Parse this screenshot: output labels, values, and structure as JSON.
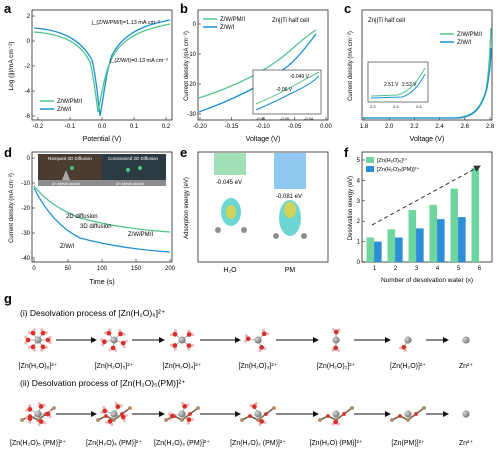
{
  "colors": {
    "series_a": "#4fc48a",
    "series_b": "#1a8fd8",
    "water_bar": "#6fd59e",
    "pm_bar": "#2b8ed6",
    "zn_atom": "#8e8e8e",
    "o_atom": "#d9302a",
    "h_atom": "#f2b6b6",
    "c_atom": "#a98a6a"
  },
  "panels": {
    "a": {
      "letter": "a",
      "ylabel": "Log (|j|/mA cm⁻²)",
      "xlabel": "Potential (V)",
      "xticks": [
        "-0.2",
        "-0.1",
        "0.0",
        "0.1",
        "0.2"
      ],
      "yticks": [
        "-6",
        "-4",
        "-2",
        "0",
        "2"
      ],
      "annot_top": "j_{Z/W/PM/I}=1.13 mA cm⁻²",
      "annot_bottom": "j_{Z/W/I}=0.13 mA cm⁻²",
      "legend": [
        "Z/W/PM/I",
        "Z/W/I"
      ]
    },
    "b": {
      "letter": "b",
      "title": "Zn||Ti half cell",
      "ylabel": "Current density (mA cm⁻²)",
      "xlabel": "Voltage (V)",
      "xticks": [
        "-0.20",
        "-0.15",
        "-0.10",
        "-0.05",
        "0.00"
      ],
      "yticks": [
        "-30",
        "-20",
        "-10",
        "0"
      ],
      "legend": [
        "Z/W/PM/I",
        "Z/W/I"
      ],
      "inset_labels": [
        "-0.049 V",
        "-0.06 V"
      ],
      "inset_xticks": [
        "-0.08",
        "-0.05",
        "-0.04"
      ]
    },
    "c": {
      "letter": "c",
      "title": "Zn||Ti half cell",
      "ylabel": "Current density (mA cm⁻²)",
      "xlabel": "Voltage (V)",
      "xticks": [
        "1.8",
        "2.0",
        "2.2",
        "2.4",
        "2.6",
        "2.8"
      ],
      "legend": [
        "Z/W/PM/I",
        "Z/W/I"
      ],
      "inset_labels": [
        "2.51 V",
        "2.53 V"
      ],
      "inset_xticks": [
        "2.2",
        "2.4",
        "2.6"
      ]
    },
    "d": {
      "letter": "d",
      "ylabel": "Current density (mA cm⁻²)",
      "xlabel": "Time (s)",
      "xticks": [
        "0",
        "50",
        "100",
        "150",
        "200"
      ],
      "yticks": [
        "-40",
        "-30",
        "-20",
        "-10",
        "0"
      ],
      "inset_left": "Rampant 2D Diffusion",
      "inset_right": "Constrained 2D Diffusion",
      "inset_base_left": "Zn Metal anode",
      "inset_base_right": "Zn Metal anode",
      "label_2d": "2D diffusion",
      "label_3d": "3D diffusion",
      "series_labels": [
        "Z/W/PM/I",
        "Z/W/I"
      ]
    },
    "e": {
      "letter": "e",
      "ylabel": "Adsorption energy (eV)",
      "energies": [
        "-0.045 eV",
        "-0.081 eV"
      ],
      "xcats": [
        "H₂O",
        "PM"
      ]
    },
    "f": {
      "letter": "f",
      "ylabel": "Desolvation energy (eV)",
      "xlabel": "Number of desolvation water (x)",
      "yticks": [
        "0",
        "1",
        "2",
        "3",
        "4",
        "5"
      ],
      "legend": [
        "[Zn(H₂O)₆]²⁺",
        "[Zn(H₂O)₅(PM)]²⁺"
      ]
    }
  },
  "chart_data": {
    "type": "bar",
    "categories": [
      "1",
      "2",
      "3",
      "4",
      "5",
      "6"
    ],
    "series": [
      {
        "name": "[Zn(H₂O)₆]²⁺",
        "values": [
          1.2,
          1.6,
          2.55,
          2.8,
          3.6,
          4.6
        ]
      },
      {
        "name": "[Zn(H₂O)₅(PM)]²⁺",
        "values": [
          1.0,
          1.2,
          1.65,
          2.1,
          2.2,
          0
        ]
      }
    ],
    "xlabel": "Number of desolvation water (x)",
    "ylabel": "Desolvation energy (eV)",
    "ylim": [
      0,
      5
    ]
  },
  "section_g": {
    "letter": "g",
    "row1_title": "(i) Desolvation process of [Zn(H₂O)₆]²⁺",
    "row1_labels": [
      "[Zn(H₂O)₆]²⁺",
      "[Zn(H₂O)₅]²⁺",
      "[Zn(H₂O)₄]²⁺",
      "[Zn(H₂O)₃]²⁺",
      "[Zn(H₂O)₂]²⁺",
      "[Zn(H₂O)]²⁺",
      "Zn²⁺"
    ],
    "row2_title": "(ii) Desolvation process of [Zn(H₂O)₅(PM)]²⁺",
    "row2_labels": [
      "[Zn(H₂O)₅ (PM)]²⁺",
      "[Zn(H₂O)₄ (PM)]²⁺",
      "[Zn(H₂O)₃ (PM)]²⁺",
      "[Zn(H₂O)₂ (PM)]²⁺",
      "[Zn(H₂O) (PM)]²⁺",
      "[Zn(PM)]²⁺",
      "Zn²⁺"
    ]
  }
}
